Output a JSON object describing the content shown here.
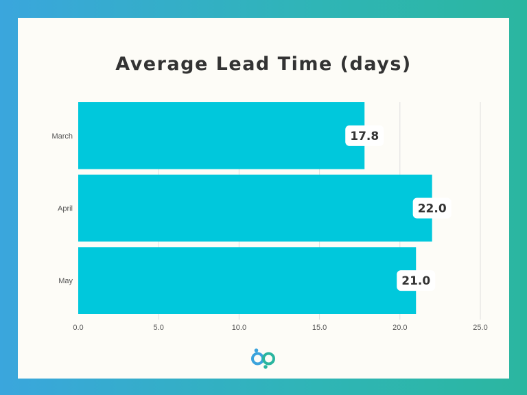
{
  "chart_data": {
    "type": "bar",
    "orientation": "horizontal",
    "title": "Average Lead Time (days)",
    "categories": [
      "March",
      "April",
      "May"
    ],
    "values": [
      17.8,
      22.0,
      21.0
    ],
    "value_labels": [
      "17.8",
      "22.0",
      "21.0"
    ],
    "xlabel": "",
    "ylabel": "",
    "xlim": [
      0,
      25
    ],
    "x_ticks": [
      "0.0",
      "5.0",
      "10.0",
      "15.0",
      "20.0",
      "25.0"
    ],
    "grid": "vertical",
    "legend": "none",
    "colors": {
      "bar": "#00c8dc",
      "grid": "#dedede",
      "label_bg": "#ffffff",
      "text": "#333333"
    }
  },
  "brand": {
    "logo_icon": "bp-logo-icon",
    "colors": {
      "b": "#3ba3dc",
      "p": "#2ab59f"
    }
  }
}
